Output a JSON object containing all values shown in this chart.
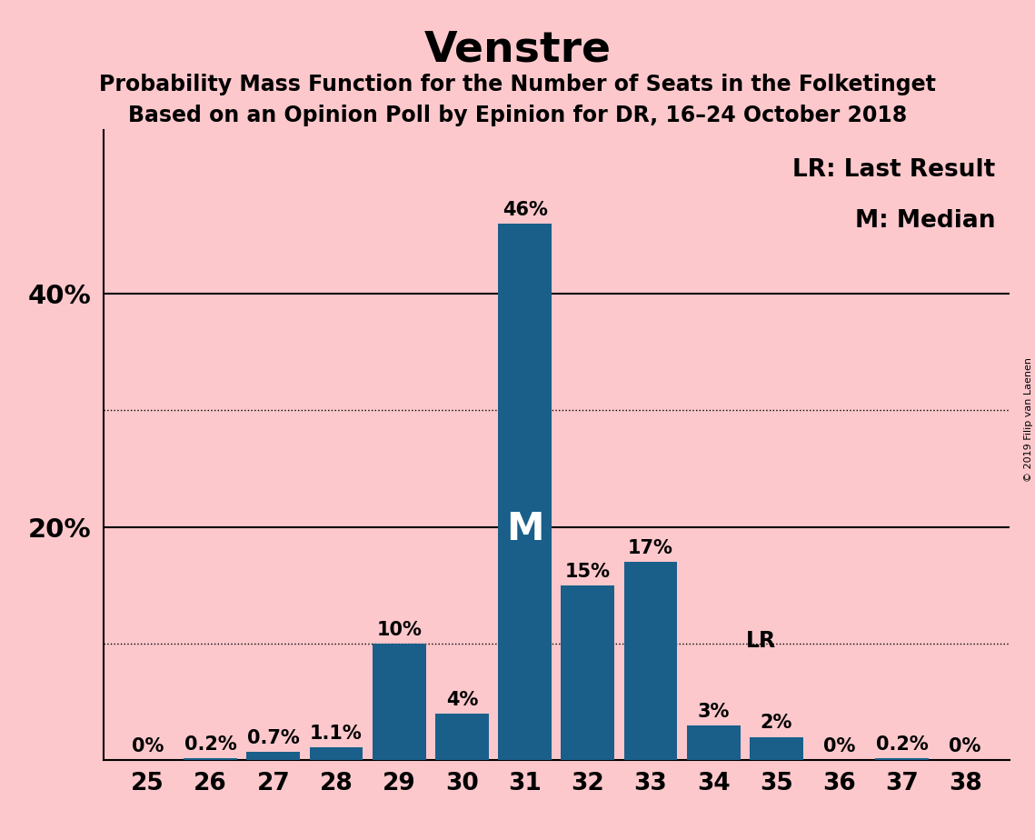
{
  "title": "Venstre",
  "subtitle1": "Probability Mass Function for the Number of Seats in the Folketinget",
  "subtitle2": "Based on an Opinion Poll by Epinion for DR, 16–24 October 2018",
  "background_color": "#fcc8cc",
  "bar_color": "#1a5f8a",
  "seats": [
    25,
    26,
    27,
    28,
    29,
    30,
    31,
    32,
    33,
    34,
    35,
    36,
    37,
    38
  ],
  "values": [
    0.0,
    0.2,
    0.7,
    1.1,
    10.0,
    4.0,
    46.0,
    15.0,
    17.0,
    3.0,
    2.0,
    0.0,
    0.2,
    0.0
  ],
  "labels": [
    "0%",
    "0.2%",
    "0.7%",
    "1.1%",
    "10%",
    "4%",
    "46%",
    "15%",
    "17%",
    "3%",
    "2%",
    "0%",
    "0.2%",
    "0%"
  ],
  "median_seat": 31,
  "last_result_seat": 34,
  "legend_text1": "LR: Last Result",
  "legend_text2": "M: Median",
  "copyright": "© 2019 Filip van Laenen",
  "solid_yticks": [
    20,
    40
  ],
  "dotted_yticks": [
    10,
    30
  ],
  "ylim": [
    0,
    54
  ],
  "title_fontsize": 34,
  "subtitle_fontsize": 17,
  "bar_label_fontsize": 15,
  "axis_tick_fontsize": 19,
  "ytick_label_fontsize": 21,
  "legend_fontsize": 19,
  "median_label_fontsize": 30
}
